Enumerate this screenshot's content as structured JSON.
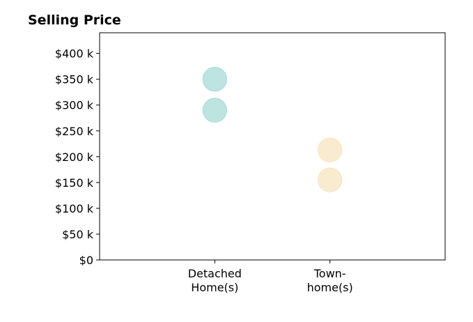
{
  "chart_data": {
    "type": "scatter",
    "title": "Selling Price",
    "xlabel": "",
    "ylabel": "",
    "categories": [
      [
        "Detached",
        "Home(s)"
      ],
      [
        "Town-",
        "home(s)"
      ]
    ],
    "x_range": [
      0,
      3
    ],
    "x_positions": [
      1,
      2
    ],
    "ylim": [
      0,
      440
    ],
    "y_ticks": [
      0,
      50,
      100,
      150,
      200,
      250,
      300,
      350,
      400
    ],
    "y_tick_labels": [
      "$0",
      "$50 k",
      "$100 k",
      "$150 k",
      "$200 k",
      "$250 k",
      "$300 k",
      "$350 k",
      "$400 k"
    ],
    "grid": false,
    "series": [
      {
        "category_index": 0,
        "values": [
          350,
          290
        ],
        "color": "#b2dfdb"
      },
      {
        "category_index": 1,
        "values": [
          213,
          155
        ],
        "color": "#f7e8c8"
      }
    ],
    "colors": {
      "detached": "#b2dfdb",
      "townhome": "#f7e8c8"
    }
  }
}
